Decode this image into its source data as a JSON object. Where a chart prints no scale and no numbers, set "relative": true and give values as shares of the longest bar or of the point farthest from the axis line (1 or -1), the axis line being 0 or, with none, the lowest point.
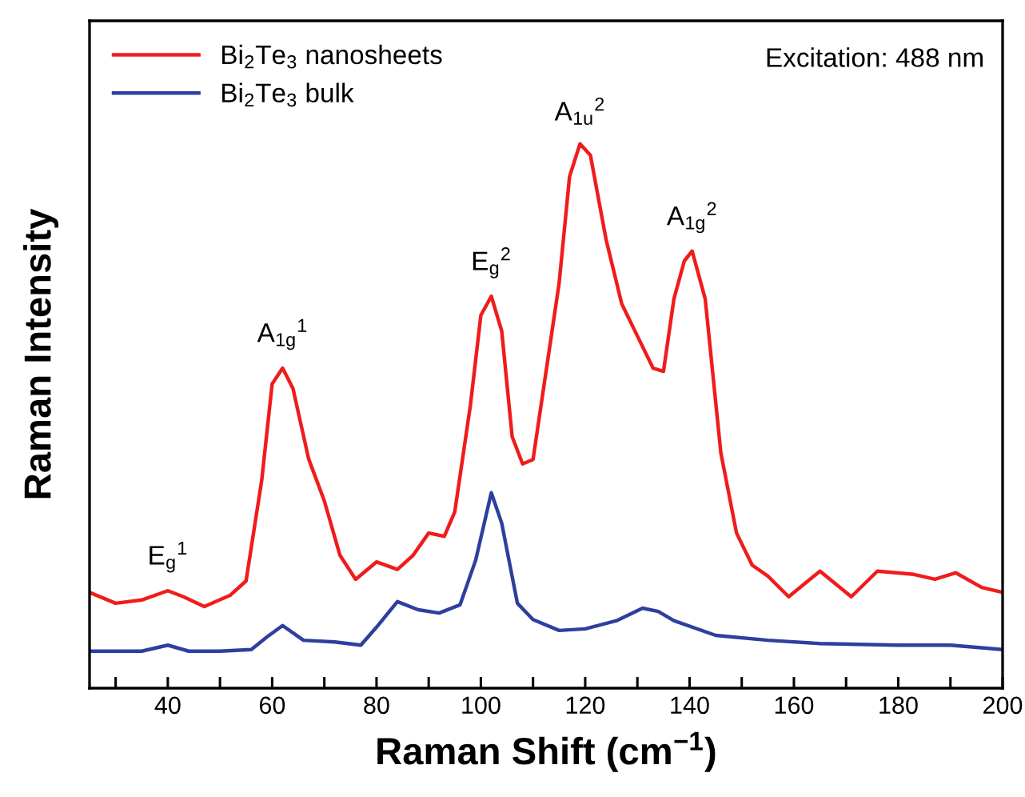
{
  "chart_data": {
    "type": "line",
    "relative": true,
    "xlabel": "Raman Shift (cm$^{−1}$)",
    "ylabel": "Raman Intensity",
    "xlim": [
      25,
      200
    ],
    "xticks": [
      {
        "value": 30,
        "label": null
      },
      40,
      {
        "value": 50,
        "label": null
      },
      60,
      {
        "value": 70,
        "label": null
      },
      80,
      {
        "value": 90,
        "label": null
      },
      100,
      {
        "value": 110,
        "label": null
      },
      120,
      {
        "value": 130,
        "label": null
      },
      140,
      {
        "value": 150,
        "label": null
      },
      160,
      {
        "value": 170,
        "label": null
      },
      180,
      {
        "value": 190,
        "label": null
      },
      200
    ],
    "tick_labels": "x",
    "legend": "top left",
    "grid": false,
    "line_style": "solid",
    "series": [
      {
        "name": "Bi$_{2}$Te$_{3}$ nanosheets",
        "color": "#f01c1c",
        "x": [
          25,
          30,
          35,
          40,
          43,
          47,
          52,
          55,
          58,
          60,
          62,
          64,
          67,
          70,
          73,
          76,
          80,
          84,
          87,
          90,
          93,
          95,
          98,
          100,
          102,
          104,
          106,
          108,
          110,
          115,
          117,
          119,
          121,
          124,
          127,
          130,
          133,
          135,
          137,
          139,
          140.5,
          143,
          146,
          149,
          152,
          155,
          159,
          165,
          171,
          176,
          183,
          187,
          191,
          196,
          200
        ],
        "values": [
          0.176,
          0.156,
          0.162,
          0.179,
          0.168,
          0.15,
          0.171,
          0.197,
          0.382,
          0.559,
          0.588,
          0.55,
          0.421,
          0.344,
          0.244,
          0.2,
          0.232,
          0.218,
          0.244,
          0.285,
          0.279,
          0.324,
          0.52,
          0.685,
          0.72,
          0.656,
          0.462,
          0.412,
          0.42,
          0.744,
          0.94,
          1.0,
          0.979,
          0.824,
          0.706,
          0.647,
          0.588,
          0.582,
          0.715,
          0.785,
          0.803,
          0.715,
          0.432,
          0.285,
          0.226,
          0.206,
          0.168,
          0.215,
          0.168,
          0.215,
          0.209,
          0.2,
          0.212,
          0.185,
          0.176
        ]
      },
      {
        "name": "Bi$_{2}$Te$_{3}$ bulk",
        "color": "#2e3f9e",
        "x": [
          25,
          35,
          40,
          44,
          50,
          56,
          59,
          62,
          66,
          72,
          77,
          80,
          84,
          88,
          92,
          96,
          99,
          102,
          104,
          107,
          110,
          115,
          120,
          126,
          131,
          134,
          137,
          145,
          155,
          165,
          180,
          190,
          200
        ],
        "values": [
          0.068,
          0.068,
          0.079,
          0.068,
          0.068,
          0.071,
          0.094,
          0.115,
          0.088,
          0.085,
          0.079,
          0.112,
          0.159,
          0.144,
          0.138,
          0.153,
          0.235,
          0.359,
          0.303,
          0.156,
          0.126,
          0.106,
          0.109,
          0.124,
          0.147,
          0.141,
          0.124,
          0.097,
          0.088,
          0.082,
          0.079,
          0.079,
          0.071
        ]
      }
    ],
    "annotations": [
      "Excitation: 488 nm",
      {
        "text": "E$_{g}$$^{1}$",
        "x": 40,
        "y": 0.179
      },
      {
        "text": "A$_{1g}$$^{1}$",
        "x": 62,
        "y": 0.588
      },
      {
        "text": "E$_{g}$$^{2}$",
        "x": 102,
        "y": 0.72
      },
      {
        "text": "A$_{1u}$$^{2}$",
        "x": 119,
        "y": 1.0
      },
      {
        "text": "A$_{1g}$$^{2}$",
        "x": 140.5,
        "y": 0.803
      }
    ]
  }
}
